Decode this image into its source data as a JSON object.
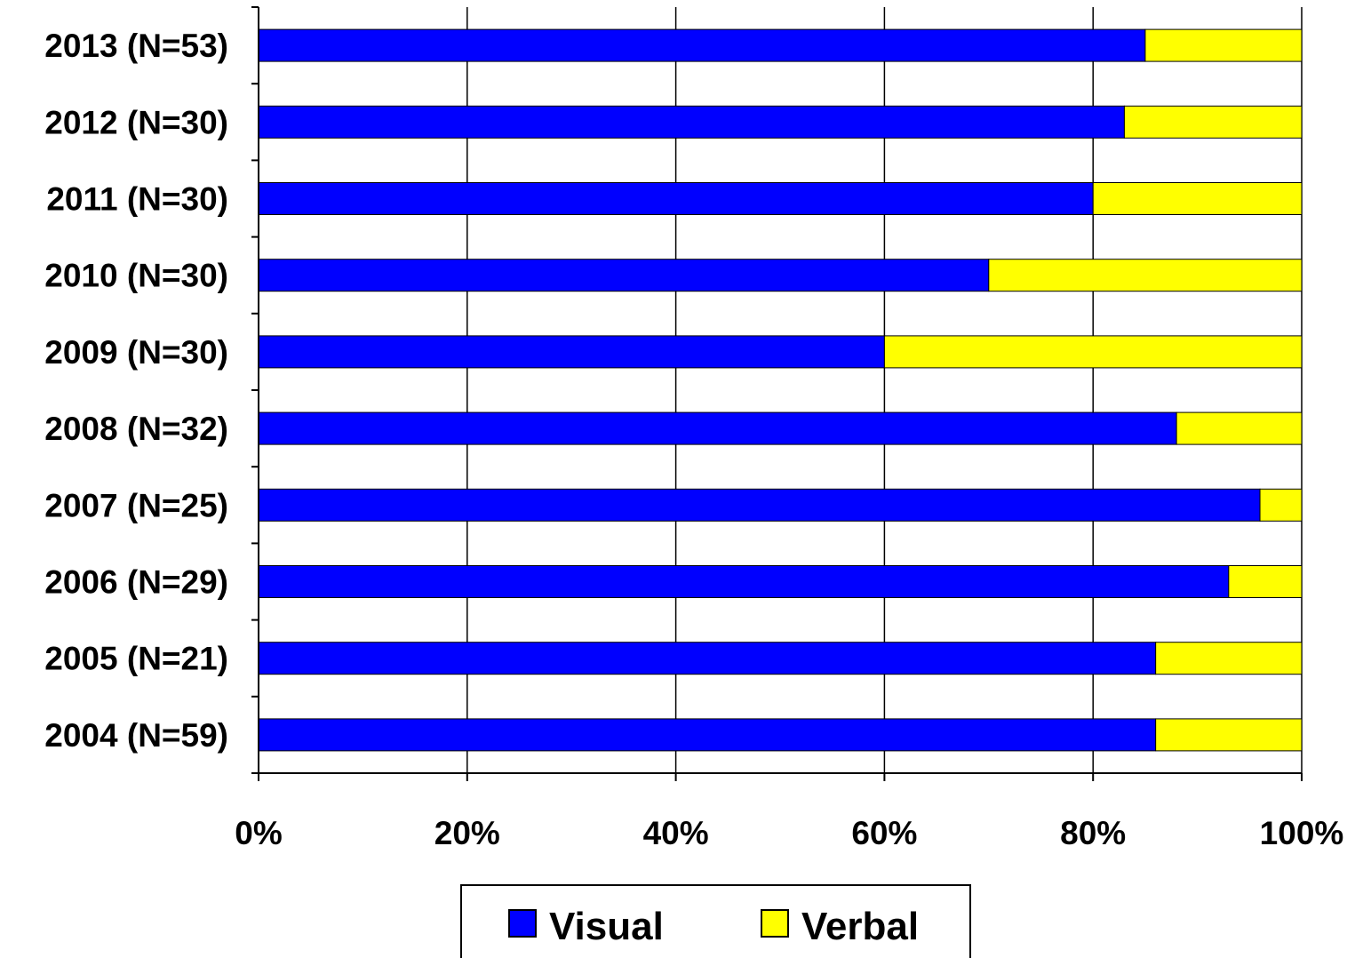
{
  "chart_data": {
    "type": "bar",
    "orientation": "horizontal",
    "stacked": "percent",
    "categories": [
      "2013 (N=53)",
      "2012 (N=30)",
      "2011 (N=30)",
      "2010 (N=30)",
      "2009 (N=30)",
      "2008 (N=32)",
      "2007 (N=25)",
      "2006 (N=29)",
      "2005 (N=21)",
      "2004 (N=59)"
    ],
    "series": [
      {
        "name": "Visual",
        "color": "#0000ff",
        "values": [
          85,
          83,
          80,
          70,
          60,
          88,
          96,
          93,
          86,
          86
        ]
      },
      {
        "name": "Verbal",
        "color": "#ffff00",
        "values": [
          15,
          17,
          20,
          30,
          40,
          12,
          4,
          7,
          14,
          14
        ]
      }
    ],
    "xticks": [
      "0%",
      "20%",
      "40%",
      "60%",
      "80%",
      "100%"
    ],
    "xlim": [
      0,
      100
    ],
    "grid": "vertical",
    "legend": "bottom-center"
  }
}
